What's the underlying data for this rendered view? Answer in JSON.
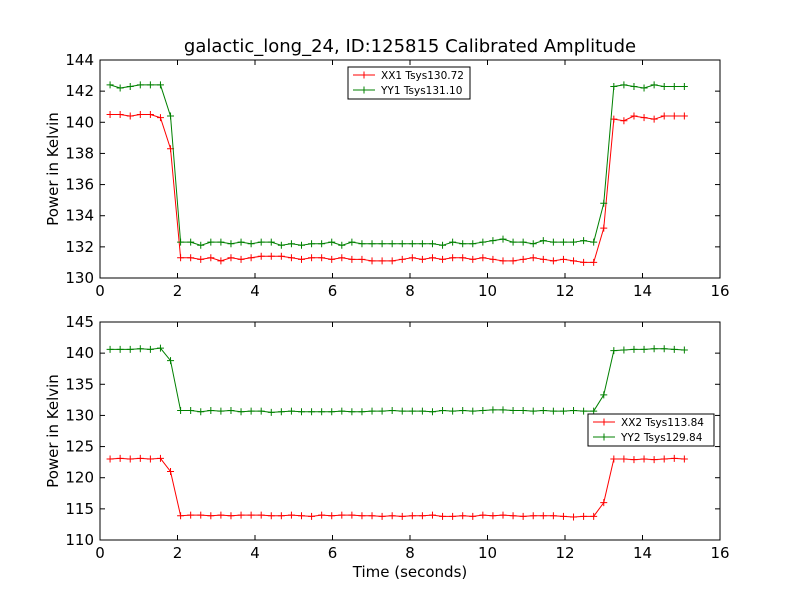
{
  "figure": {
    "title": "galactic_long_24, ID:125815 Calibrated Amplitude"
  },
  "chart_data": [
    {
      "type": "line",
      "title": "galactic_long_24, ID:125815 Calibrated Amplitude",
      "xlabel": "",
      "ylabel": "Power in Kelvin",
      "xlim": [
        0,
        16
      ],
      "ylim": [
        130,
        144
      ],
      "xticks": [
        0,
        2,
        4,
        6,
        8,
        10,
        12,
        14,
        16
      ],
      "yticks": [
        130,
        132,
        134,
        136,
        138,
        140,
        142,
        144
      ],
      "grid": false,
      "legend_position": "top-center",
      "series": [
        {
          "name": "XX1 Tsys130.72",
          "color": "#ff0000",
          "x": [
            0.26,
            0.52,
            0.78,
            1.04,
            1.3,
            1.56,
            1.82,
            2.08,
            2.34,
            2.6,
            2.86,
            3.12,
            3.38,
            3.64,
            3.9,
            4.16,
            4.42,
            4.68,
            4.94,
            5.2,
            5.46,
            5.72,
            5.98,
            6.24,
            6.5,
            6.76,
            7.02,
            7.28,
            7.54,
            7.8,
            8.06,
            8.32,
            8.58,
            8.84,
            9.1,
            9.36,
            9.62,
            9.88,
            10.14,
            10.4,
            10.66,
            10.92,
            11.18,
            11.44,
            11.7,
            11.96,
            12.22,
            12.48,
            12.74,
            13.0,
            13.26,
            13.52,
            13.78,
            14.04,
            14.3,
            14.56,
            14.82,
            15.08
          ],
          "values": [
            140.5,
            140.5,
            140.4,
            140.5,
            140.5,
            140.3,
            138.3,
            131.3,
            131.3,
            131.2,
            131.3,
            131.1,
            131.3,
            131.2,
            131.3,
            131.4,
            131.4,
            131.4,
            131.3,
            131.2,
            131.3,
            131.3,
            131.2,
            131.3,
            131.2,
            131.2,
            131.1,
            131.1,
            131.1,
            131.2,
            131.3,
            131.2,
            131.3,
            131.2,
            131.3,
            131.3,
            131.2,
            131.3,
            131.2,
            131.1,
            131.1,
            131.2,
            131.3,
            131.2,
            131.1,
            131.2,
            131.1,
            131.0,
            131.0,
            133.2,
            140.2,
            140.1,
            140.4,
            140.3,
            140.2,
            140.4,
            140.4,
            140.4
          ]
        },
        {
          "name": "YY1 Tsys131.10",
          "color": "#008000",
          "x": [
            0.26,
            0.52,
            0.78,
            1.04,
            1.3,
            1.56,
            1.82,
            2.08,
            2.34,
            2.6,
            2.86,
            3.12,
            3.38,
            3.64,
            3.9,
            4.16,
            4.42,
            4.68,
            4.94,
            5.2,
            5.46,
            5.72,
            5.98,
            6.24,
            6.5,
            6.76,
            7.02,
            7.28,
            7.54,
            7.8,
            8.06,
            8.32,
            8.58,
            8.84,
            9.1,
            9.36,
            9.62,
            9.88,
            10.14,
            10.4,
            10.66,
            10.92,
            11.18,
            11.44,
            11.7,
            11.96,
            12.22,
            12.48,
            12.74,
            13.0,
            13.26,
            13.52,
            13.78,
            14.04,
            14.3,
            14.56,
            14.82,
            15.08
          ],
          "values": [
            142.4,
            142.2,
            142.3,
            142.4,
            142.4,
            142.4,
            140.4,
            132.3,
            132.3,
            132.1,
            132.3,
            132.3,
            132.2,
            132.3,
            132.2,
            132.3,
            132.3,
            132.1,
            132.2,
            132.1,
            132.2,
            132.2,
            132.3,
            132.1,
            132.3,
            132.2,
            132.2,
            132.2,
            132.2,
            132.2,
            132.2,
            132.2,
            132.2,
            132.1,
            132.3,
            132.2,
            132.2,
            132.3,
            132.4,
            132.5,
            132.3,
            132.3,
            132.2,
            132.4,
            132.3,
            132.3,
            132.3,
            132.4,
            132.3,
            134.8,
            142.3,
            142.4,
            142.3,
            142.2,
            142.4,
            142.3,
            142.3,
            142.3
          ]
        }
      ]
    },
    {
      "type": "line",
      "title": "",
      "xlabel": "Time (seconds)",
      "ylabel": "Power in Kelvin",
      "xlim": [
        0,
        16
      ],
      "ylim": [
        110,
        145
      ],
      "xticks": [
        0,
        2,
        4,
        6,
        8,
        10,
        12,
        14,
        16
      ],
      "yticks": [
        110,
        115,
        120,
        125,
        130,
        135,
        140,
        145
      ],
      "grid": false,
      "legend_position": "center-right",
      "series": [
        {
          "name": "XX2 Tsys113.84",
          "color": "#ff0000",
          "x": [
            0.26,
            0.52,
            0.78,
            1.04,
            1.3,
            1.56,
            1.82,
            2.08,
            2.34,
            2.6,
            2.86,
            3.12,
            3.38,
            3.64,
            3.9,
            4.16,
            4.42,
            4.68,
            4.94,
            5.2,
            5.46,
            5.72,
            5.98,
            6.24,
            6.5,
            6.76,
            7.02,
            7.28,
            7.54,
            7.8,
            8.06,
            8.32,
            8.58,
            8.84,
            9.1,
            9.36,
            9.62,
            9.88,
            10.14,
            10.4,
            10.66,
            10.92,
            11.18,
            11.44,
            11.7,
            11.96,
            12.22,
            12.48,
            12.74,
            13.0,
            13.26,
            13.52,
            13.78,
            14.04,
            14.3,
            14.56,
            14.82,
            15.08
          ],
          "values": [
            123.0,
            123.1,
            123.0,
            123.1,
            123.0,
            123.1,
            121.0,
            113.9,
            114.0,
            114.0,
            113.9,
            114.0,
            113.9,
            114.0,
            114.0,
            114.0,
            113.9,
            113.9,
            114.0,
            113.9,
            113.8,
            114.0,
            113.9,
            114.0,
            114.0,
            113.9,
            113.9,
            113.8,
            113.9,
            113.8,
            113.9,
            113.9,
            114.0,
            113.8,
            113.8,
            113.9,
            113.8,
            114.0,
            113.9,
            114.0,
            113.9,
            113.8,
            113.9,
            113.9,
            113.9,
            113.8,
            113.7,
            113.8,
            113.8,
            116.0,
            123.0,
            123.0,
            122.9,
            123.0,
            122.9,
            123.0,
            123.1,
            123.0
          ]
        },
        {
          "name": "YY2 Tsys129.84",
          "color": "#008000",
          "x": [
            0.26,
            0.52,
            0.78,
            1.04,
            1.3,
            1.56,
            1.82,
            2.08,
            2.34,
            2.6,
            2.86,
            3.12,
            3.38,
            3.64,
            3.9,
            4.16,
            4.42,
            4.68,
            4.94,
            5.2,
            5.46,
            5.72,
            5.98,
            6.24,
            6.5,
            6.76,
            7.02,
            7.28,
            7.54,
            7.8,
            8.06,
            8.32,
            8.58,
            8.84,
            9.1,
            9.36,
            9.62,
            9.88,
            10.14,
            10.4,
            10.66,
            10.92,
            11.18,
            11.44,
            11.7,
            11.96,
            12.22,
            12.48,
            12.74,
            13.0,
            13.26,
            13.52,
            13.78,
            14.04,
            14.3,
            14.56,
            14.82,
            15.08
          ],
          "values": [
            140.6,
            140.6,
            140.6,
            140.7,
            140.6,
            140.8,
            138.8,
            130.8,
            130.8,
            130.6,
            130.8,
            130.7,
            130.8,
            130.6,
            130.7,
            130.7,
            130.5,
            130.6,
            130.7,
            130.6,
            130.6,
            130.6,
            130.6,
            130.7,
            130.6,
            130.6,
            130.7,
            130.7,
            130.8,
            130.7,
            130.7,
            130.7,
            130.6,
            130.8,
            130.7,
            130.8,
            130.7,
            130.8,
            130.9,
            130.9,
            130.8,
            130.8,
            130.7,
            130.8,
            130.7,
            130.7,
            130.8,
            130.7,
            130.7,
            133.3,
            140.4,
            140.5,
            140.6,
            140.6,
            140.7,
            140.7,
            140.6,
            140.5
          ]
        }
      ]
    }
  ]
}
